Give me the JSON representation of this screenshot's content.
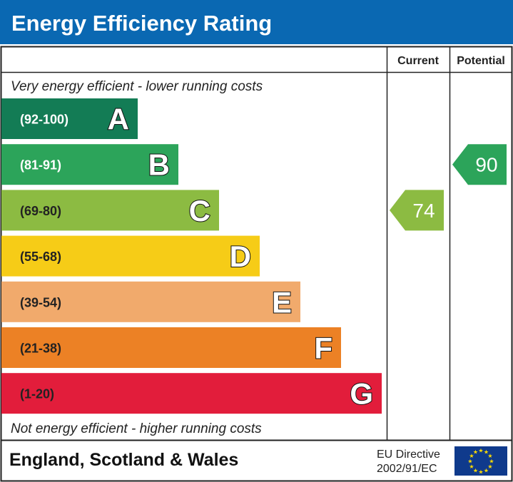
{
  "title": "Energy Efficiency Rating",
  "colors": {
    "title_bar": "#0a68b2",
    "border": "#222222"
  },
  "chart_data": {
    "type": "bar",
    "title": "Energy Efficiency Rating",
    "column_headers": {
      "current": "Current",
      "potential": "Potential"
    },
    "top_note": "Very energy efficient - lower running costs",
    "bottom_note": "Not energy efficient - higher running costs",
    "categories": [
      "A",
      "B",
      "C",
      "D",
      "E",
      "F",
      "G"
    ],
    "bands": [
      {
        "letter": "A",
        "range": "(92-100)",
        "color": "#137c55",
        "text_color": "#ffffff"
      },
      {
        "letter": "B",
        "range": "(81-91)",
        "color": "#2ca45a",
        "text_color": "#ffffff"
      },
      {
        "letter": "C",
        "range": "(69-80)",
        "color": "#8cbb42",
        "text_color": "#222222"
      },
      {
        "letter": "D",
        "range": "(55-68)",
        "color": "#f6cc17",
        "text_color": "#222222"
      },
      {
        "letter": "E",
        "range": "(39-54)",
        "color": "#f1aa6c",
        "text_color": "#222222"
      },
      {
        "letter": "F",
        "range": "(21-38)",
        "color": "#ec8125",
        "text_color": "#222222"
      },
      {
        "letter": "G",
        "range": "(1-20)",
        "color": "#e21d3b",
        "text_color": "#222222"
      }
    ],
    "current": {
      "value": 74,
      "band": "C",
      "color": "#8cbb42"
    },
    "potential": {
      "value": 90,
      "band": "B",
      "color": "#2ca45a"
    }
  },
  "footer": {
    "region": "England, Scotland & Wales",
    "directive_line1": "EU Directive",
    "directive_line2": "2002/91/EC",
    "flag_color": "#0f3a8c",
    "star_color": "#ffdd00"
  }
}
